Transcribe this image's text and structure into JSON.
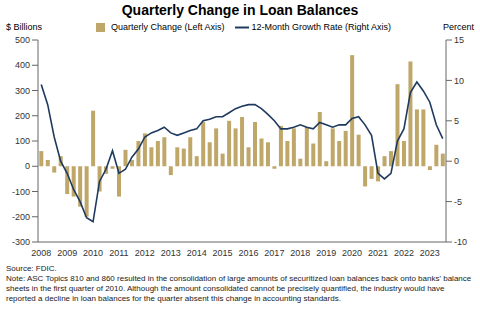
{
  "chart_data": {
    "type": "bar",
    "title": "Quarterly Change in Loan Balances",
    "y_label": "$ Billions",
    "y2_label": "Percent",
    "categories": [
      "2008",
      null,
      null,
      null,
      "2009",
      null,
      null,
      null,
      "2010",
      null,
      null,
      null,
      "2011",
      null,
      null,
      null,
      "2012",
      null,
      null,
      null,
      "2013",
      null,
      null,
      null,
      "2014",
      null,
      null,
      null,
      "2015",
      null,
      null,
      null,
      "2016",
      null,
      null,
      null,
      "2017",
      null,
      null,
      null,
      "2018",
      null,
      null,
      null,
      "2019",
      null,
      null,
      null,
      "2020",
      null,
      null,
      null,
      "2021",
      null,
      null,
      null,
      "2022",
      null,
      null,
      null,
      "2023",
      null,
      null
    ],
    "series": [
      {
        "name": "Quarterly Change (Left Axis)",
        "type": "bar",
        "color": "#bfa76a",
        "values": [
          60,
          25,
          -25,
          40,
          -110,
          -120,
          -160,
          -200,
          220,
          -100,
          -30,
          -10,
          -120,
          65,
          25,
          100,
          130,
          75,
          100,
          115,
          -35,
          75,
          70,
          115,
          40,
          175,
          95,
          150,
          50,
          180,
          150,
          195,
          75,
          175,
          110,
          95,
          -10,
          160,
          100,
          150,
          30,
          155,
          90,
          215,
          20,
          150,
          100,
          140,
          440,
          125,
          -80,
          -50,
          -60,
          40,
          60,
          325,
          100,
          415,
          225,
          225,
          -15,
          85,
          50
        ]
      },
      {
        "name": "12-Month Growth Rate (Right Axis)",
        "type": "line",
        "axis": "y2",
        "color": "#1f3a5f",
        "values": [
          9.5,
          7,
          3,
          0,
          -1.5,
          -3.5,
          -5,
          -7,
          -7.5,
          -2.5,
          -1,
          1.3,
          -1.5,
          -1,
          0.5,
          1.5,
          3,
          3.5,
          3.8,
          4.2,
          3.5,
          3.2,
          3.5,
          3.8,
          4,
          5,
          5.2,
          5.5,
          5.5,
          6,
          6.5,
          6.8,
          7,
          7,
          6.5,
          5.8,
          5,
          4,
          4,
          4.2,
          4.5,
          4.2,
          4,
          4.8,
          4.5,
          4.2,
          4.5,
          4.5,
          5.3,
          5.5,
          4.5,
          3.2,
          -1.5,
          -2.2,
          -1.5,
          2.5,
          4,
          8.5,
          9.8,
          8.7,
          7.3,
          4.5,
          2.8
        ]
      }
    ],
    "ylim": [
      -300,
      500
    ],
    "yticks": [
      -300,
      -200,
      -100,
      0,
      100,
      200,
      300,
      400,
      500
    ],
    "y2lim": [
      -10,
      15
    ],
    "y2ticks": [
      -10,
      -5,
      0,
      5,
      10,
      15
    ],
    "grid": false,
    "source": "Source: FDIC.",
    "note": "Note: ASC Topics 810 and 860 resulted in the consolidation of large amounts of securitized loan balances back onto banks' balance sheets in the first quarter of 2010. Although the amount consolidated cannot be precisely quantified, the industry would have reported a decline in loan balances for the quarter absent this change in accounting standards."
  }
}
